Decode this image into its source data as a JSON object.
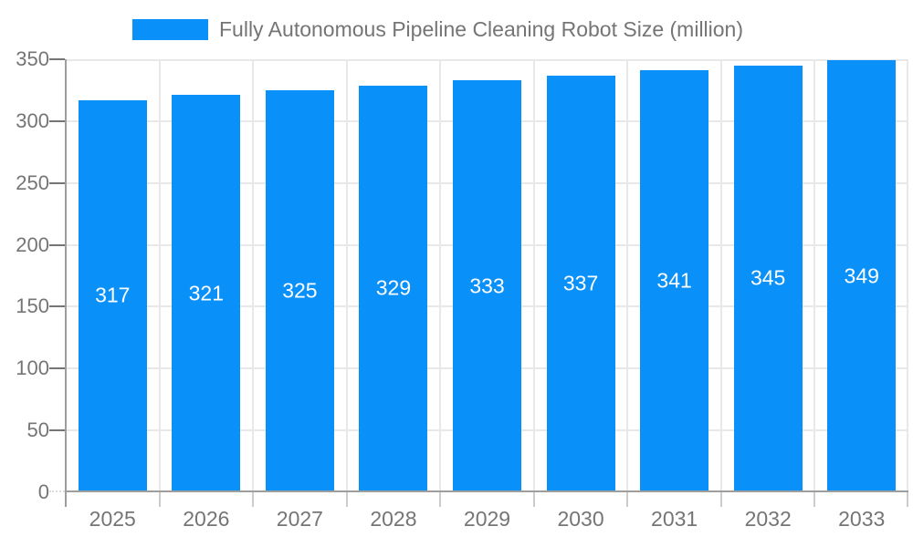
{
  "legend": {
    "label": "Fully Autonomous Pipeline Cleaning Robot Size (million)"
  },
  "colors": {
    "bar": "#0a90f9",
    "axis_line": "#9e9e9e",
    "grid_line": "#e8e8e8",
    "tick_mark": "#757575",
    "axis_text": "#757575",
    "value_label_text": "#ffffff",
    "background": "#ffffff"
  },
  "chart_data": {
    "type": "bar",
    "title": "Fully Autonomous Pipeline Cleaning Robot Size (million)",
    "categories": [
      "2025",
      "2026",
      "2027",
      "2028",
      "2029",
      "2030",
      "2031",
      "2032",
      "2033"
    ],
    "values": [
      317,
      321,
      325,
      329,
      333,
      337,
      341,
      345,
      349
    ],
    "series": [
      {
        "name": "Fully Autonomous Pipeline Cleaning Robot Size (million)",
        "values": [
          317,
          321,
          325,
          329,
          333,
          337,
          341,
          345,
          349
        ]
      }
    ],
    "xlabel": "",
    "ylabel": "",
    "ylim": [
      0,
      350
    ],
    "yticks": [
      0,
      50,
      100,
      150,
      200,
      250,
      300,
      350
    ],
    "grid": true,
    "legend_position": "top",
    "value_labels": "inside-center"
  }
}
